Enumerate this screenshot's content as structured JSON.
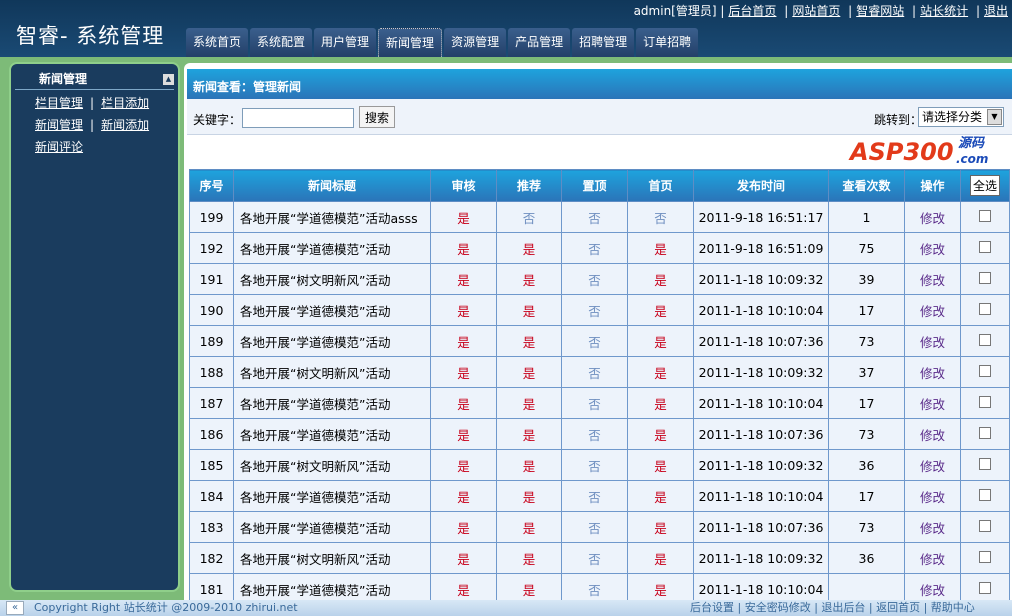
{
  "header": {
    "logo": "智睿- 系统管理",
    "user": "admin[管理员]",
    "links": [
      "后台首页",
      "网站首页",
      "智睿网站",
      "站长统计",
      "退出"
    ]
  },
  "tabs": [
    "系统首页",
    "系统配置",
    "用户管理",
    "新闻管理",
    "资源管理",
    "产品管理",
    "招聘管理",
    "订单招聘"
  ],
  "active_tab": 3,
  "sidebar": {
    "title": "新闻管理",
    "links": [
      "栏目管理",
      "栏目添加",
      "新闻管理",
      "新闻添加",
      "新闻评论"
    ]
  },
  "main": {
    "title": "新闻查看：管理新闻",
    "keyword_label": "关键字：",
    "keyword_value": "",
    "search_label": "搜索",
    "jump_label": "跳转到：",
    "jump_selected": "请选择分类"
  },
  "table": {
    "headers": [
      "序号",
      "新闻标题",
      "审核",
      "推荐",
      "置顶",
      "首页",
      "发布时间",
      "查看次数",
      "操作"
    ],
    "select_all": "全选",
    "edit_label": "修改",
    "rows": [
      [
        "199",
        "各地开展“学道德模范”活动asss",
        "是",
        "否",
        "否",
        "否",
        "2011-9-18 16:51:17",
        "1"
      ],
      [
        "192",
        "各地开展“学道德模范”活动",
        "是",
        "是",
        "否",
        "是",
        "2011-9-18 16:51:09",
        "75"
      ],
      [
        "191",
        "各地开展“树文明新风”活动",
        "是",
        "是",
        "否",
        "是",
        "2011-1-18 10:09:32",
        "39"
      ],
      [
        "190",
        "各地开展“学道德模范”活动",
        "是",
        "是",
        "否",
        "是",
        "2011-1-18 10:10:04",
        "17"
      ],
      [
        "189",
        "各地开展“学道德模范”活动",
        "是",
        "是",
        "否",
        "是",
        "2011-1-18 10:07:36",
        "73"
      ],
      [
        "188",
        "各地开展“树文明新风”活动",
        "是",
        "是",
        "否",
        "是",
        "2011-1-18 10:09:32",
        "37"
      ],
      [
        "187",
        "各地开展“学道德模范”活动",
        "是",
        "是",
        "否",
        "是",
        "2011-1-18 10:10:04",
        "17"
      ],
      [
        "186",
        "各地开展“学道德模范”活动",
        "是",
        "是",
        "否",
        "是",
        "2011-1-18 10:07:36",
        "73"
      ],
      [
        "185",
        "各地开展“树文明新风”活动",
        "是",
        "是",
        "否",
        "是",
        "2011-1-18 10:09:32",
        "36"
      ],
      [
        "184",
        "各地开展“学道德模范”活动",
        "是",
        "是",
        "否",
        "是",
        "2011-1-18 10:10:04",
        "17"
      ],
      [
        "183",
        "各地开展“学道德模范”活动",
        "是",
        "是",
        "否",
        "是",
        "2011-1-18 10:07:36",
        "73"
      ],
      [
        "182",
        "各地开展“树文明新风”活动",
        "是",
        "是",
        "否",
        "是",
        "2011-1-18 10:09:32",
        "36"
      ],
      [
        "181",
        "各地开展“学道德模范”活动",
        "是",
        "是",
        "否",
        "是",
        "2011-1-18 10:10:04",
        ""
      ]
    ]
  },
  "footer": {
    "copyright": "Copyright Right 站长统计 @2009-2010 zhirui.net",
    "links": "后台设置 | 安全密码修改 | 退出后台 | 返回首页 | 帮助中心"
  },
  "watermark": {
    "text": "ASP300",
    "sub1": "源码",
    "sub2": ".com"
  }
}
